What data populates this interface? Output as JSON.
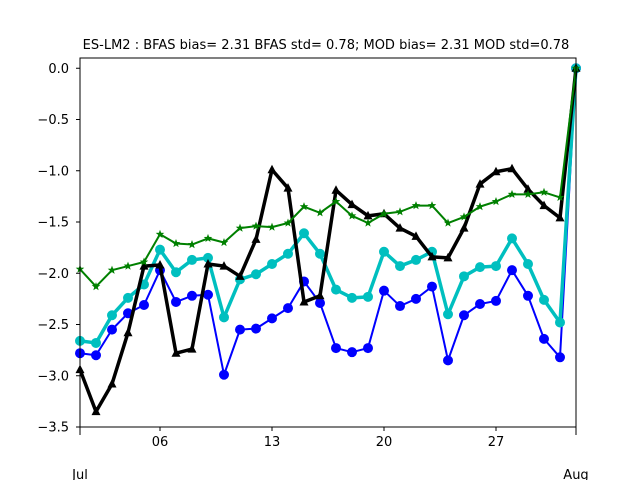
{
  "chart_data": {
    "type": "line",
    "title": "ES-LM2   : BFAS bias= 2.31 BFAS std= 0.78; MOD bias= 2.31 MOD std=0.78",
    "xlabel": "",
    "ylabel": "",
    "xlim": [
      0,
      31
    ],
    "ylim": [
      -3.5,
      0.1
    ],
    "grid": false,
    "x_ticks": [
      {
        "x": 5,
        "label": "06"
      },
      {
        "x": 12,
        "label": "13"
      },
      {
        "x": 19,
        "label": "20"
      },
      {
        "x": 26,
        "label": "27"
      }
    ],
    "x_edge_labels": [
      {
        "x": 0,
        "label": "Jul"
      },
      {
        "x": 31,
        "label": "Aug"
      }
    ],
    "y_ticks": [
      0.0,
      -0.5,
      -1.0,
      -1.5,
      -2.0,
      -2.5,
      -3.0,
      -3.5
    ],
    "y_tick_labels": [
      "0.0",
      "−0.5",
      "−1.0",
      "−1.5",
      "−2.0",
      "−2.5",
      "−3.0",
      "−3.5"
    ],
    "x": [
      0,
      1,
      2,
      3,
      4,
      5,
      6,
      7,
      8,
      9,
      10,
      11,
      12,
      13,
      14,
      15,
      16,
      17,
      18,
      19,
      20,
      21,
      22,
      23,
      24,
      25,
      26,
      27,
      28,
      29,
      30,
      31
    ],
    "series": [
      {
        "color": "#0000ff",
        "marker": "circle",
        "width": 2,
        "values": [
          -2.78,
          -2.8,
          -2.55,
          -2.39,
          -2.31,
          -1.97,
          -2.28,
          -2.22,
          -2.21,
          -2.99,
          -2.55,
          -2.54,
          -2.44,
          -2.34,
          -2.08,
          -2.29,
          -2.73,
          -2.77,
          -2.73,
          -2.17,
          -2.32,
          -2.25,
          -2.13,
          -2.85,
          -2.41,
          -2.3,
          -2.27,
          -1.97,
          -2.22,
          -2.64,
          -2.82,
          0.0
        ]
      },
      {
        "color": "#00bfbf",
        "marker": "circle",
        "width": 3.5,
        "values": [
          -2.66,
          -2.68,
          -2.41,
          -2.24,
          -2.11,
          -1.77,
          -1.99,
          -1.87,
          -1.85,
          -2.43,
          -2.06,
          -2.01,
          -1.91,
          -1.81,
          -1.61,
          -1.81,
          -2.16,
          -2.24,
          -2.23,
          -1.79,
          -1.93,
          -1.87,
          -1.79,
          -2.4,
          -2.03,
          -1.94,
          -1.93,
          -1.66,
          -1.91,
          -2.26,
          -2.48,
          0.0
        ]
      },
      {
        "color": "#000000",
        "marker": "triangle",
        "width": 3.5,
        "values": [
          -2.94,
          -3.35,
          -3.08,
          -2.58,
          -1.93,
          -1.92,
          -2.78,
          -2.74,
          -1.91,
          -1.93,
          -2.03,
          -1.67,
          -0.99,
          -1.17,
          -2.28,
          -2.22,
          -1.19,
          -1.33,
          -1.44,
          -1.42,
          -1.56,
          -1.64,
          -1.84,
          -1.85,
          -1.56,
          -1.13,
          -1.01,
          -0.98,
          -1.18,
          -1.34,
          -1.46,
          0.0
        ]
      },
      {
        "color": "#008000",
        "marker": "star",
        "width": 2,
        "values": [
          -1.96,
          -2.13,
          -1.97,
          -1.93,
          -1.89,
          -1.62,
          -1.71,
          -1.72,
          -1.66,
          -1.7,
          -1.56,
          -1.54,
          -1.55,
          -1.51,
          -1.35,
          -1.41,
          -1.3,
          -1.44,
          -1.51,
          -1.42,
          -1.4,
          -1.34,
          -1.34,
          -1.51,
          -1.45,
          -1.35,
          -1.3,
          -1.23,
          -1.23,
          -1.21,
          -1.26,
          0.0
        ]
      }
    ]
  }
}
